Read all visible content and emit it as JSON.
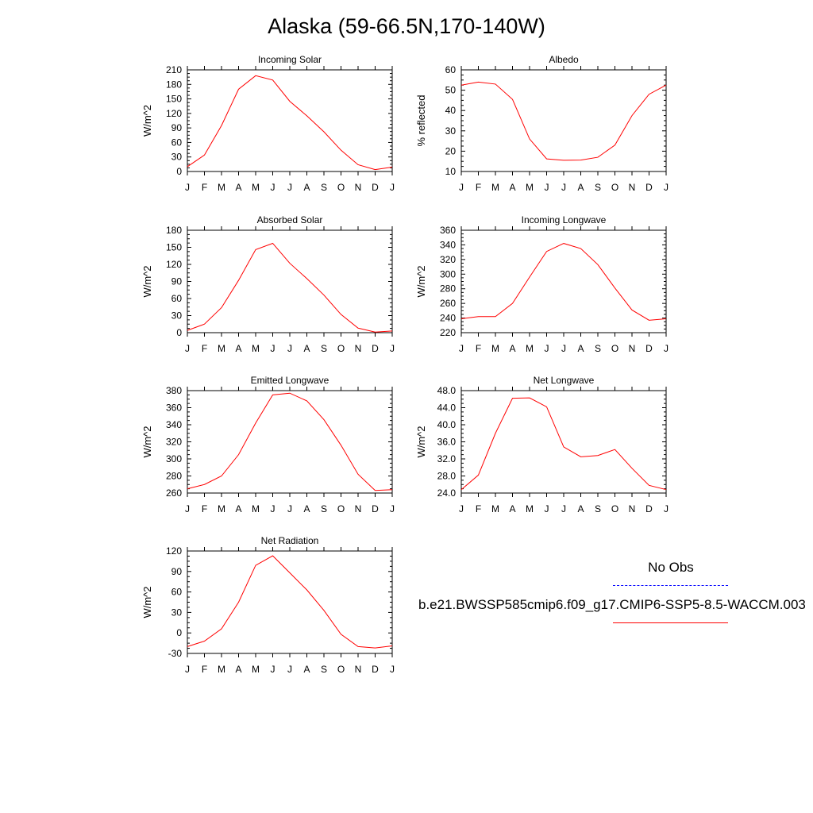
{
  "title": "Alaska (59-66.5N,170-140W)",
  "legend": {
    "obs_label": "No Obs",
    "model_label": "b.e21.BWSSP585cmip6.f09_g17.CMIP6-SSP5-8.5-WACCM.003",
    "obs_color": "#0000ff",
    "model_color": "#ff0000"
  },
  "chart_data": [
    {
      "type": "line",
      "title": "Incoming Solar",
      "ylabel": "W/m^2",
      "x": [
        "J",
        "F",
        "M",
        "A",
        "M",
        "J",
        "J",
        "A",
        "S",
        "O",
        "N",
        "D",
        "J"
      ],
      "ylim": [
        0,
        210
      ],
      "yticks": [
        0,
        30,
        60,
        90,
        120,
        150,
        180,
        210
      ],
      "ytick_labels": [
        "0",
        "30",
        "60",
        "90",
        "120",
        "150",
        "180",
        "210"
      ],
      "series": [
        {
          "values": [
            10,
            34,
            95,
            170,
            198,
            189,
            145,
            115,
            82,
            44,
            14,
            4,
            9
          ],
          "color": "#ff0000"
        }
      ]
    },
    {
      "type": "line",
      "title": "Albedo",
      "ylabel": "% reflected",
      "x": [
        "J",
        "F",
        "M",
        "A",
        "M",
        "J",
        "J",
        "A",
        "S",
        "O",
        "N",
        "D",
        "J"
      ],
      "ylim": [
        10,
        60
      ],
      "yticks": [
        10,
        20,
        30,
        40,
        50,
        60
      ],
      "ytick_labels": [
        "10",
        "20",
        "30",
        "40",
        "50",
        "60"
      ],
      "series": [
        {
          "values": [
            52.5,
            54,
            53,
            45.5,
            26,
            16.2,
            15.5,
            15.6,
            17,
            23,
            37.5,
            48,
            52.5
          ],
          "color": "#ff0000"
        }
      ]
    },
    {
      "type": "line",
      "title": "Absorbed Solar",
      "ylabel": "W/m^2",
      "x": [
        "J",
        "F",
        "M",
        "A",
        "M",
        "J",
        "J",
        "A",
        "S",
        "O",
        "N",
        "D",
        "J"
      ],
      "ylim": [
        0,
        180
      ],
      "yticks": [
        0,
        30,
        60,
        90,
        120,
        150,
        180
      ],
      "ytick_labels": [
        "0",
        "30",
        "60",
        "90",
        "120",
        "150",
        "180"
      ],
      "series": [
        {
          "values": [
            4,
            15,
            44,
            92,
            146,
            157,
            122,
            95,
            66,
            32,
            8,
            1,
            3
          ],
          "color": "#ff0000"
        }
      ]
    },
    {
      "type": "line",
      "title": "Incoming Longwave",
      "ylabel": "W/m^2",
      "x": [
        "J",
        "F",
        "M",
        "A",
        "M",
        "J",
        "J",
        "A",
        "S",
        "O",
        "N",
        "D",
        "J"
      ],
      "ylim": [
        220,
        360
      ],
      "yticks": [
        220,
        240,
        260,
        280,
        300,
        320,
        340,
        360
      ],
      "ytick_labels": [
        "220",
        "240",
        "260",
        "280",
        "300",
        "320",
        "340",
        "360"
      ],
      "series": [
        {
          "values": [
            239,
            242,
            242,
            260,
            296,
            331,
            342,
            335,
            313,
            281,
            251,
            237,
            239
          ],
          "color": "#ff0000"
        }
      ]
    },
    {
      "type": "line",
      "title": "Emitted Longwave",
      "ylabel": "W/m^2",
      "x": [
        "J",
        "F",
        "M",
        "A",
        "M",
        "J",
        "J",
        "A",
        "S",
        "O",
        "N",
        "D",
        "J"
      ],
      "ylim": [
        260,
        380
      ],
      "yticks": [
        260,
        280,
        300,
        320,
        340,
        360,
        380
      ],
      "ytick_labels": [
        "260",
        "280",
        "300",
        "320",
        "340",
        "360",
        "380"
      ],
      "series": [
        {
          "values": [
            265,
            270,
            280,
            305,
            342,
            375,
            377,
            368,
            346,
            316,
            282,
            263,
            264
          ],
          "color": "#ff0000"
        }
      ]
    },
    {
      "type": "line",
      "title": "Net Longwave",
      "ylabel": "W/m^2",
      "x": [
        "J",
        "F",
        "M",
        "A",
        "M",
        "J",
        "J",
        "A",
        "S",
        "O",
        "N",
        "D",
        "J"
      ],
      "ylim": [
        24,
        48
      ],
      "yticks": [
        24,
        28,
        32,
        36,
        40,
        44,
        48
      ],
      "ytick_labels": [
        "24.0",
        "28.0",
        "32.0",
        "36.0",
        "40.0",
        "44.0",
        "48.0"
      ],
      "series": [
        {
          "values": [
            24.8,
            28.2,
            38,
            46.2,
            46.3,
            44.2,
            34.8,
            32.5,
            32.8,
            34.2,
            29.8,
            25.8,
            24.8
          ],
          "color": "#ff0000"
        }
      ]
    },
    {
      "type": "line",
      "title": "Net Radiation",
      "ylabel": "W/m^2",
      "x": [
        "J",
        "F",
        "M",
        "A",
        "M",
        "J",
        "J",
        "A",
        "S",
        "O",
        "N",
        "D",
        "J"
      ],
      "ylim": [
        -30,
        120
      ],
      "yticks": [
        -30,
        0,
        30,
        60,
        90,
        120
      ],
      "ytick_labels": [
        "-30",
        "0",
        "30",
        "60",
        "90",
        "120"
      ],
      "series": [
        {
          "values": [
            -20,
            -12,
            6,
            45,
            99,
            113,
            88,
            63,
            33,
            -2,
            -20,
            -22,
            -19
          ],
          "color": "#ff0000"
        }
      ]
    }
  ]
}
